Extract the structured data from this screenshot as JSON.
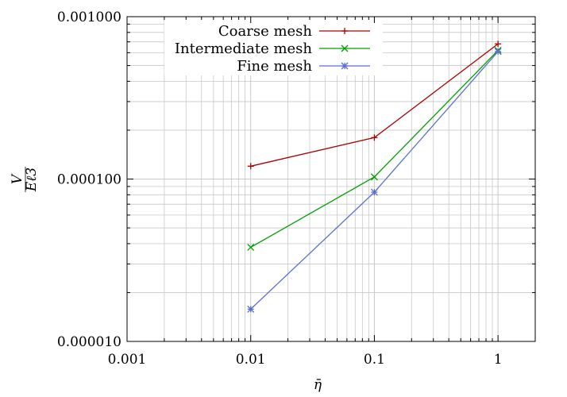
{
  "chart_data": {
    "type": "line",
    "xscale": "log",
    "yscale": "log",
    "xlim": [
      0.001,
      2
    ],
    "ylim": [
      1e-05,
      0.001
    ],
    "xticks": [
      0.001,
      0.01,
      0.1,
      1
    ],
    "xtick_labels": [
      "0.001",
      "0.01",
      "0.1",
      "1"
    ],
    "yticks": [
      1e-05,
      0.0001,
      0.001
    ],
    "ytick_labels": [
      "0.000010",
      "0.000100",
      "0.001000"
    ],
    "xlabel": "η̄",
    "ylabel_numerator": "V",
    "ylabel_denominator": "Eℓ3",
    "grid": true,
    "legend_position": "top-center",
    "series": [
      {
        "name": "Coarse mesh",
        "color": "#aa0000",
        "marker": "plus",
        "x": [
          0.01,
          0.1,
          1
        ],
        "y": [
          0.00012,
          0.00018,
          0.00068
        ]
      },
      {
        "name": "Intermediate mesh",
        "color": "#00a000",
        "marker": "cross",
        "x": [
          0.01,
          0.1,
          1
        ],
        "y": [
          3.8e-05,
          0.000103,
          0.00062
        ]
      },
      {
        "name": "Fine mesh",
        "color": "#5a6ed2",
        "marker": "star",
        "x": [
          0.01,
          0.1,
          1
        ],
        "y": [
          1.58e-05,
          8.3e-05,
          0.00061
        ]
      }
    ]
  }
}
